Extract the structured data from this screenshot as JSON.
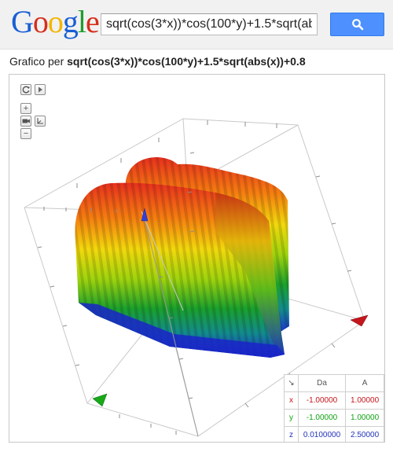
{
  "header": {
    "logo_text": "Google",
    "logo_colors": [
      "#1a5fd4",
      "#d62e1c",
      "#f2b600",
      "#1a5fd4",
      "#1f9d2e",
      "#d62e1c"
    ],
    "search_value": "sqrt(cos(3*x))*cos(100*y)+1.5*sqrt(abs(x))+0.8",
    "search_button_color": "#4d90fe"
  },
  "result": {
    "title_prefix": "Grafico per ",
    "title_formula": "sqrt(cos(3*x))*cos(100*y)+1.5*sqrt(abs(x))+0.8"
  },
  "graph": {
    "controls": {
      "reset_icon": "refresh-icon",
      "play_icon": "play-icon",
      "zoom_in": "+",
      "zoom_out": "−",
      "camera_icon": "camera-icon",
      "axes_icon": "axes-icon"
    },
    "axis_colors": {
      "x": "#c4161c",
      "y": "#11a311",
      "z": "#2233bb"
    },
    "range_table": {
      "corner_icon": "↘",
      "col_from": "Da",
      "col_to": "A",
      "rows": [
        {
          "axis": "x",
          "from": "-1.00000",
          "to": "1.00000"
        },
        {
          "axis": "y",
          "from": "-1.00000",
          "to": "1.00000"
        },
        {
          "axis": "z",
          "from": "0.0100000",
          "to": "2.50000"
        }
      ]
    }
  }
}
